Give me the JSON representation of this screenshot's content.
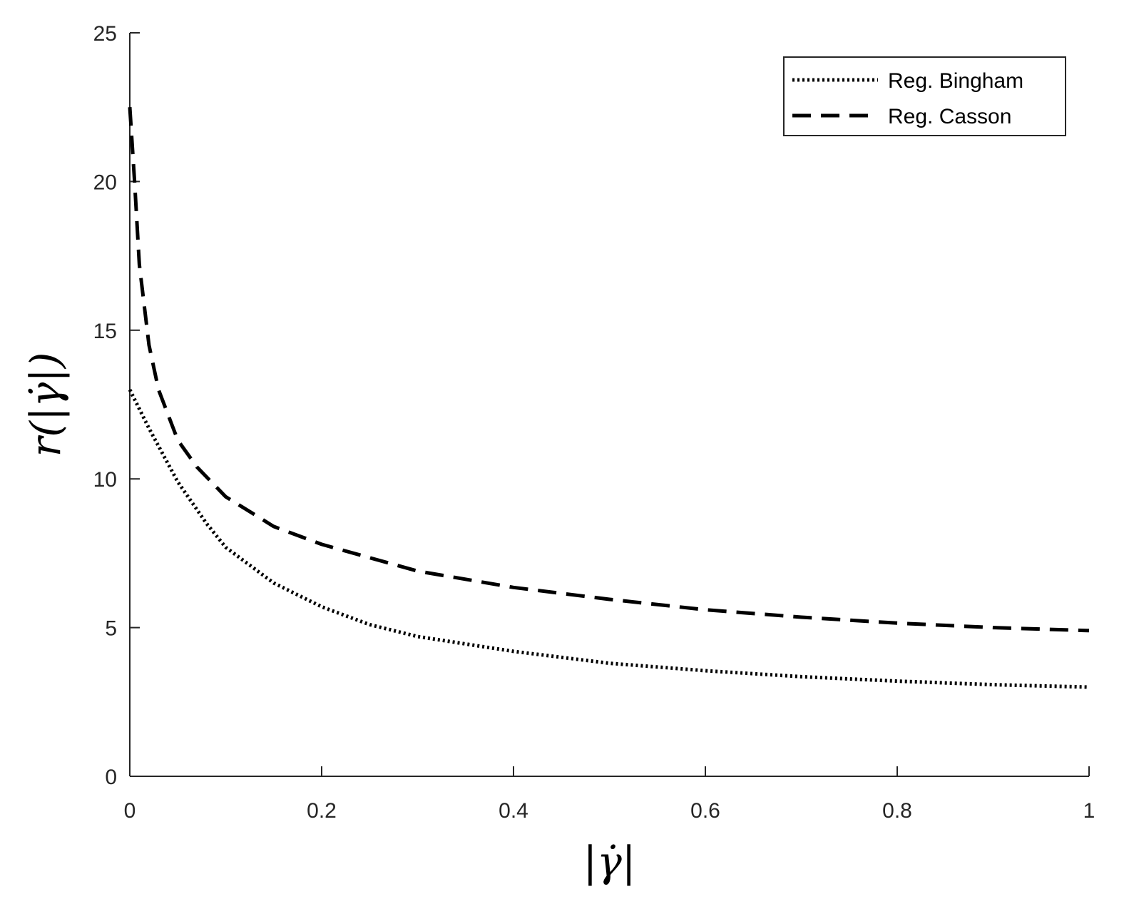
{
  "chart_data": {
    "type": "line",
    "title": "",
    "xlabel": "|γ̇|",
    "ylabel": "r(|γ̇|)",
    "xlim": [
      0,
      1
    ],
    "ylim": [
      0,
      25
    ],
    "xticks": [
      0,
      0.2,
      0.4,
      0.6,
      0.8,
      1
    ],
    "xtick_labels": [
      "0",
      "0.2",
      "0.4",
      "0.6",
      "0.8",
      "1"
    ],
    "yticks": [
      0,
      5,
      10,
      15,
      20,
      25
    ],
    "ytick_labels": [
      "0",
      "5",
      "10",
      "15",
      "20",
      "25"
    ],
    "grid": false,
    "legend_position": "top-right",
    "series": [
      {
        "name": "Reg. Bingham",
        "style": "dotted",
        "color": "#000000",
        "x": [
          0,
          0.02,
          0.05,
          0.08,
          0.1,
          0.15,
          0.2,
          0.25,
          0.3,
          0.4,
          0.5,
          0.6,
          0.7,
          0.8,
          0.9,
          1.0
        ],
        "y": [
          13.0,
          11.7,
          9.9,
          8.5,
          7.7,
          6.5,
          5.7,
          5.1,
          4.7,
          4.2,
          3.8,
          3.55,
          3.35,
          3.2,
          3.08,
          3.0
        ]
      },
      {
        "name": "Reg. Casson",
        "style": "dashed",
        "color": "#000000",
        "x": [
          0,
          0.005,
          0.01,
          0.02,
          0.03,
          0.05,
          0.07,
          0.1,
          0.15,
          0.2,
          0.3,
          0.4,
          0.5,
          0.6,
          0.7,
          0.8,
          0.9,
          1.0
        ],
        "y": [
          22.5,
          20.0,
          17.2,
          14.5,
          13.0,
          11.3,
          10.4,
          9.4,
          8.4,
          7.8,
          6.9,
          6.35,
          5.95,
          5.6,
          5.35,
          5.15,
          5.0,
          4.9
        ]
      }
    ]
  }
}
